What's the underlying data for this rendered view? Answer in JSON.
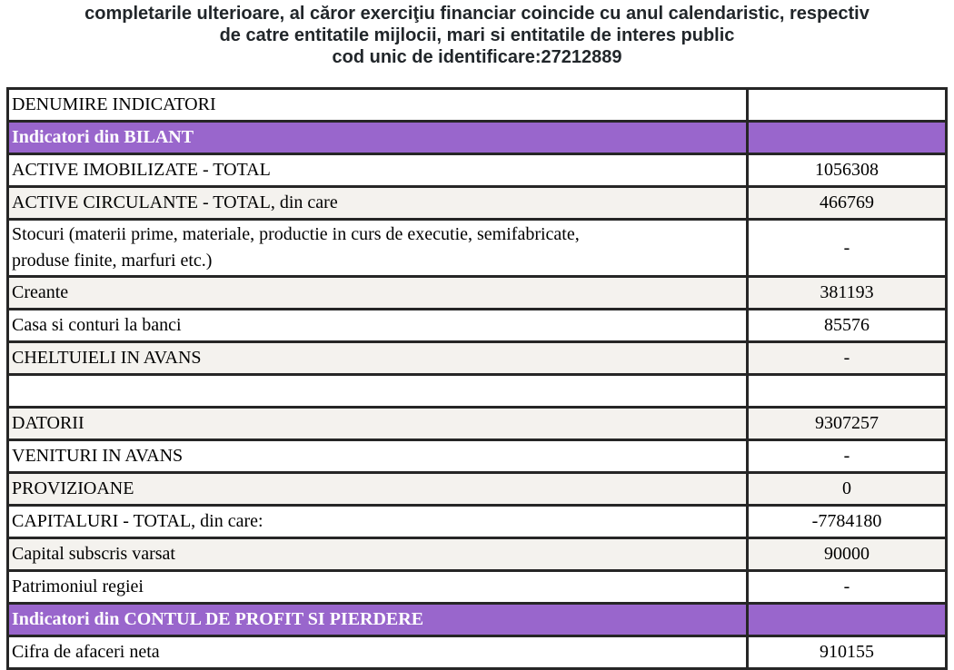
{
  "header": {
    "lines": [
      "completarile ulterioare, al căror exerciţiu financiar coincide cu anul calendaristic, respectiv",
      "de catre entitatile mijlocii, mari si entitatile de interes public",
      "cod unic de identificare:27212889"
    ]
  },
  "table": {
    "rows": [
      {
        "label": "DENUMIRE INDICATORI",
        "value": ""
      },
      {
        "label": "Indicatori din BILANT",
        "value": ""
      },
      {
        "label": "ACTIVE IMOBILIZATE - TOTAL",
        "value": "1056308"
      },
      {
        "label": "ACTIVE CIRCULANTE - TOTAL, din care",
        "value": "466769"
      },
      {
        "label": "Stocuri (materii prime, materiale, productie in curs de executie, semifabricate,\nproduse finite, marfuri etc.)",
        "value": "-"
      },
      {
        "label": "Creante",
        "value": "381193"
      },
      {
        "label": "Casa si conturi la banci",
        "value": "85576"
      },
      {
        "label": "CHELTUIELI IN AVANS",
        "value": "-"
      },
      {
        "label": "",
        "value": ""
      },
      {
        "label": "DATORII",
        "value": "9307257"
      },
      {
        "label": "VENITURI IN AVANS",
        "value": "-"
      },
      {
        "label": "PROVIZIOANE",
        "value": "0"
      },
      {
        "label": "CAPITALURI - TOTAL, din care:",
        "value": "-7784180"
      },
      {
        "label": "Capital subscris varsat",
        "value": "90000"
      },
      {
        "label": "Patrimoniul regiei",
        "value": "-"
      },
      {
        "label": "Indicatori din CONTUL DE PROFIT SI PIERDERE",
        "value": ""
      },
      {
        "label": "Cifra de afaceri neta",
        "value": "910155"
      }
    ]
  },
  "colors": {
    "section_purple": "#9966cc",
    "row_alt_gray": "#f4f2ee",
    "border_dark": "#262626",
    "header_text": "#21262a"
  }
}
